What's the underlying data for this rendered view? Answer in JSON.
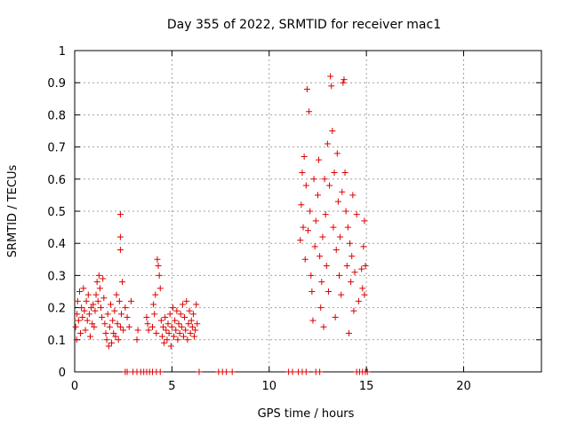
{
  "chart_data": {
    "type": "scatter",
    "title": "Day 355 of 2022, SRMTID for receiver mac1",
    "xlabel": "GPS time / hours",
    "ylabel": "SRMTID / TECUs",
    "xlim": [
      0,
      24
    ],
    "ylim": [
      0,
      1
    ],
    "x_ticks": [
      0,
      5,
      10,
      15,
      20
    ],
    "x_tick_labels": [
      "0",
      "5",
      "10",
      "15",
      "20"
    ],
    "y_ticks": [
      0,
      0.1,
      0.2,
      0.3,
      0.4,
      0.5,
      0.6,
      0.7,
      0.8,
      0.9,
      1
    ],
    "y_tick_labels": [
      "0",
      "0.1",
      "0.2",
      "0.3",
      "0.4",
      "0.5",
      "0.6",
      "0.7",
      "0.8",
      "0.9",
      "1"
    ],
    "grid": true,
    "marker": "plus",
    "series": [
      {
        "name": "SRMTID",
        "color": "#dd0000",
        "points": [
          [
            0.05,
            0.14
          ],
          [
            0.1,
            0.1
          ],
          [
            0.12,
            0.18
          ],
          [
            0.15,
            0.22
          ],
          [
            0.2,
            0.16
          ],
          [
            0.25,
            0.25
          ],
          [
            0.3,
            0.12
          ],
          [
            0.35,
            0.2
          ],
          [
            0.4,
            0.17
          ],
          [
            0.45,
            0.26
          ],
          [
            0.5,
            0.19
          ],
          [
            0.55,
            0.13
          ],
          [
            0.6,
            0.22
          ],
          [
            0.65,
            0.16
          ],
          [
            0.7,
            0.24
          ],
          [
            0.75,
            0.18
          ],
          [
            0.8,
            0.11
          ],
          [
            0.85,
            0.2
          ],
          [
            0.9,
            0.15
          ],
          [
            0.95,
            0.21
          ],
          [
            1.0,
            0.14
          ],
          [
            1.05,
            0.19
          ],
          [
            1.1,
            0.24
          ],
          [
            1.15,
            0.28
          ],
          [
            1.2,
            0.22
          ],
          [
            1.25,
            0.3
          ],
          [
            1.3,
            0.26
          ],
          [
            1.35,
            0.2
          ],
          [
            1.4,
            0.17
          ],
          [
            1.45,
            0.29
          ],
          [
            1.5,
            0.23
          ],
          [
            1.55,
            0.15
          ],
          [
            1.6,
            0.12
          ],
          [
            1.65,
            0.1
          ],
          [
            1.7,
            0.18
          ],
          [
            1.75,
            0.08
          ],
          [
            1.8,
            0.14
          ],
          [
            1.85,
            0.21
          ],
          [
            1.9,
            0.09
          ],
          [
            1.95,
            0.16
          ],
          [
            2.0,
            0.12
          ],
          [
            2.05,
            0.19
          ],
          [
            2.1,
            0.11
          ],
          [
            2.15,
            0.24
          ],
          [
            2.2,
            0.15
          ],
          [
            2.25,
            0.1
          ],
          [
            2.3,
            0.22
          ],
          [
            2.35,
            0.14
          ],
          [
            2.4,
            0.18
          ],
          [
            2.45,
            0.28
          ],
          [
            2.35,
            0.49
          ],
          [
            2.35,
            0.42
          ],
          [
            2.35,
            0.38
          ],
          [
            2.5,
            0.13
          ],
          [
            2.6,
            0.2
          ],
          [
            2.7,
            0.17
          ],
          [
            2.8,
            0.14
          ],
          [
            2.9,
            0.22
          ],
          [
            3.2,
            0.1
          ],
          [
            3.25,
            0.13
          ],
          [
            3.7,
            0.17
          ],
          [
            3.75,
            0.15
          ],
          [
            3.8,
            0.13
          ],
          [
            4.0,
            0.14
          ],
          [
            4.05,
            0.21
          ],
          [
            4.1,
            0.18
          ],
          [
            4.15,
            0.24
          ],
          [
            4.2,
            0.12
          ],
          [
            4.25,
            0.35
          ],
          [
            4.3,
            0.33
          ],
          [
            4.35,
            0.3
          ],
          [
            4.4,
            0.26
          ],
          [
            4.45,
            0.16
          ],
          [
            4.5,
            0.11
          ],
          [
            4.55,
            0.14
          ],
          [
            4.6,
            0.09
          ],
          [
            4.65,
            0.17
          ],
          [
            4.7,
            0.13
          ],
          [
            4.75,
            0.1
          ],
          [
            4.8,
            0.15
          ],
          [
            4.85,
            0.12
          ],
          [
            4.9,
            0.18
          ],
          [
            4.95,
            0.08
          ],
          [
            5.0,
            0.14
          ],
          [
            5.05,
            0.2
          ],
          [
            5.1,
            0.11
          ],
          [
            5.15,
            0.16
          ],
          [
            5.2,
            0.13
          ],
          [
            5.25,
            0.19
          ],
          [
            5.3,
            0.1
          ],
          [
            5.35,
            0.15
          ],
          [
            5.4,
            0.12
          ],
          [
            5.45,
            0.18
          ],
          [
            5.5,
            0.14
          ],
          [
            5.55,
            0.21
          ],
          [
            5.6,
            0.11
          ],
          [
            5.65,
            0.17
          ],
          [
            5.7,
            0.13
          ],
          [
            5.75,
            0.22
          ],
          [
            5.8,
            0.1
          ],
          [
            5.85,
            0.15
          ],
          [
            5.9,
            0.19
          ],
          [
            5.95,
            0.12
          ],
          [
            6.0,
            0.16
          ],
          [
            6.05,
            0.14
          ],
          [
            6.1,
            0.18
          ],
          [
            6.15,
            0.11
          ],
          [
            6.2,
            0.13
          ],
          [
            6.25,
            0.21
          ],
          [
            6.3,
            0.15
          ],
          [
            11.6,
            0.41
          ],
          [
            11.65,
            0.52
          ],
          [
            11.7,
            0.62
          ],
          [
            11.75,
            0.45
          ],
          [
            11.8,
            0.67
          ],
          [
            11.85,
            0.35
          ],
          [
            11.9,
            0.58
          ],
          [
            11.95,
            0.88
          ],
          [
            12.0,
            0.44
          ],
          [
            12.05,
            0.81
          ],
          [
            12.1,
            0.5
          ],
          [
            12.15,
            0.3
          ],
          [
            12.2,
            0.25
          ],
          [
            12.25,
            0.16
          ],
          [
            12.3,
            0.6
          ],
          [
            12.35,
            0.39
          ],
          [
            12.4,
            0.47
          ],
          [
            12.5,
            0.55
          ],
          [
            12.55,
            0.66
          ],
          [
            12.6,
            0.36
          ],
          [
            12.65,
            0.2
          ],
          [
            12.7,
            0.28
          ],
          [
            12.75,
            0.42
          ],
          [
            12.8,
            0.14
          ],
          [
            12.85,
            0.6
          ],
          [
            12.9,
            0.49
          ],
          [
            12.95,
            0.33
          ],
          [
            13.0,
            0.71
          ],
          [
            13.05,
            0.25
          ],
          [
            13.1,
            0.58
          ],
          [
            13.15,
            0.92
          ],
          [
            13.2,
            0.89
          ],
          [
            13.25,
            0.75
          ],
          [
            13.3,
            0.45
          ],
          [
            13.35,
            0.62
          ],
          [
            13.4,
            0.17
          ],
          [
            13.45,
            0.38
          ],
          [
            13.5,
            0.68
          ],
          [
            13.55,
            0.53
          ],
          [
            13.6,
            0.3
          ],
          [
            13.65,
            0.42
          ],
          [
            13.7,
            0.24
          ],
          [
            13.75,
            0.56
          ],
          [
            13.8,
            0.9
          ],
          [
            13.85,
            0.91
          ],
          [
            13.9,
            0.62
          ],
          [
            13.95,
            0.5
          ],
          [
            14.0,
            0.33
          ],
          [
            14.05,
            0.45
          ],
          [
            14.1,
            0.12
          ],
          [
            14.15,
            0.4
          ],
          [
            14.2,
            0.28
          ],
          [
            14.25,
            0.36
          ],
          [
            14.3,
            0.55
          ],
          [
            14.35,
            0.19
          ],
          [
            14.4,
            0.31
          ],
          [
            14.5,
            0.49
          ],
          [
            14.6,
            0.22
          ],
          [
            14.75,
            0.32
          ],
          [
            14.8,
            0.26
          ],
          [
            14.85,
            0.39
          ],
          [
            14.9,
            0.47
          ],
          [
            14.9,
            0.24
          ],
          [
            14.95,
            0.33
          ],
          [
            2.6,
            0
          ],
          [
            2.7,
            0
          ],
          [
            3.0,
            0
          ],
          [
            3.2,
            0
          ],
          [
            3.4,
            0
          ],
          [
            3.55,
            0
          ],
          [
            3.7,
            0
          ],
          [
            3.85,
            0
          ],
          [
            4.0,
            0
          ],
          [
            4.2,
            0
          ],
          [
            4.4,
            0
          ],
          [
            6.4,
            0
          ],
          [
            7.4,
            0
          ],
          [
            7.6,
            0
          ],
          [
            7.8,
            0
          ],
          [
            8.1,
            0
          ],
          [
            11.0,
            0
          ],
          [
            11.2,
            0
          ],
          [
            11.5,
            0
          ],
          [
            11.7,
            0
          ],
          [
            11.9,
            0
          ],
          [
            12.4,
            0
          ],
          [
            12.6,
            0
          ],
          [
            14.5,
            0
          ],
          [
            14.65,
            0
          ],
          [
            14.8,
            0
          ],
          [
            14.95,
            0
          ],
          [
            15.05,
            0
          ]
        ]
      }
    ]
  }
}
